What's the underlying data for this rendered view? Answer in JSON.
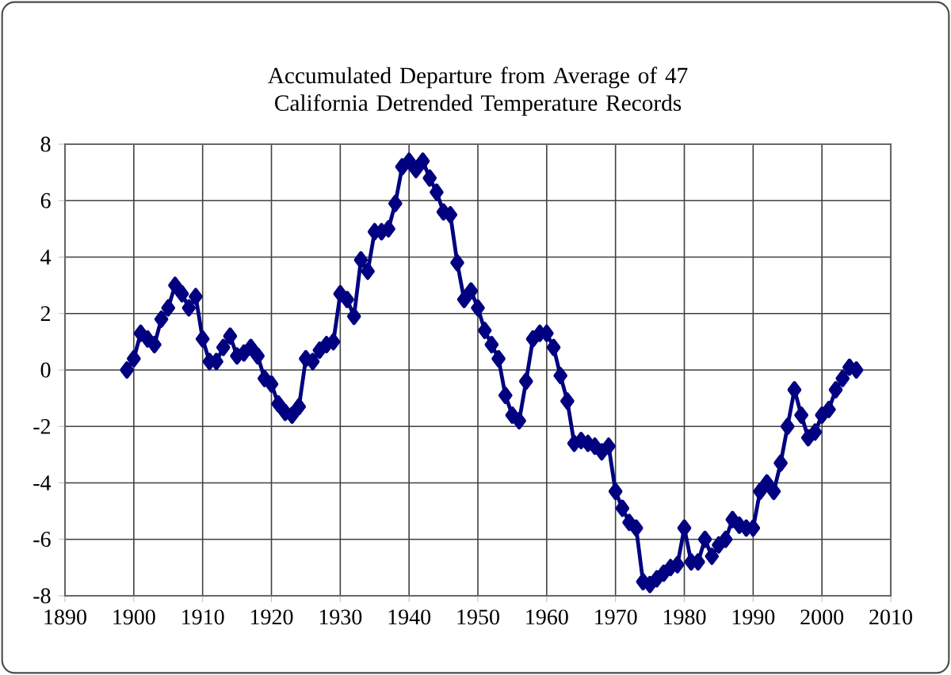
{
  "chart_data": {
    "type": "line",
    "title": "Accumulated Departure from Average of 47 California Detrended Temperature Records",
    "x": [
      1899,
      1900,
      1901,
      1902,
      1903,
      1904,
      1905,
      1906,
      1907,
      1908,
      1909,
      1910,
      1911,
      1912,
      1913,
      1914,
      1915,
      1916,
      1917,
      1918,
      1919,
      1920,
      1921,
      1922,
      1923,
      1924,
      1925,
      1926,
      1927,
      1928,
      1929,
      1930,
      1931,
      1932,
      1933,
      1934,
      1935,
      1936,
      1937,
      1938,
      1939,
      1940,
      1941,
      1942,
      1943,
      1944,
      1945,
      1946,
      1947,
      1948,
      1949,
      1950,
      1951,
      1952,
      1953,
      1954,
      1955,
      1956,
      1957,
      1958,
      1959,
      1960,
      1961,
      1962,
      1963,
      1964,
      1965,
      1966,
      1967,
      1968,
      1969,
      1970,
      1971,
      1972,
      1973,
      1974,
      1975,
      1976,
      1977,
      1978,
      1979,
      1980,
      1981,
      1982,
      1983,
      1984,
      1985,
      1986,
      1987,
      1988,
      1989,
      1990,
      1991,
      1992,
      1993,
      1994,
      1995,
      1996,
      1997,
      1998,
      1999,
      2000,
      2001,
      2002,
      2003,
      2004,
      2005
    ],
    "series": [
      {
        "color": "#000080",
        "values": [
          0.0,
          0.4,
          1.3,
          1.1,
          0.9,
          1.8,
          2.2,
          3.0,
          2.7,
          2.2,
          2.6,
          1.1,
          0.3,
          0.3,
          0.8,
          1.2,
          0.5,
          0.6,
          0.8,
          0.5,
          -0.3,
          -0.5,
          -1.2,
          -1.5,
          -1.6,
          -1.3,
          0.4,
          0.3,
          0.7,
          0.9,
          1.0,
          2.7,
          2.5,
          1.9,
          3.9,
          3.5,
          4.9,
          4.9,
          5.0,
          5.9,
          7.2,
          7.4,
          7.1,
          7.4,
          6.8,
          6.3,
          5.6,
          5.5,
          3.8,
          2.5,
          2.8,
          2.2,
          1.4,
          0.9,
          0.4,
          -0.9,
          -1.6,
          -1.8,
          -0.4,
          1.1,
          1.3,
          1.3,
          0.8,
          -0.2,
          -1.1,
          -2.6,
          -2.5,
          -2.6,
          -2.7,
          -2.9,
          -2.7,
          -4.3,
          -4.9,
          -5.4,
          -5.6,
          -7.5,
          -7.6,
          -7.4,
          -7.2,
          -7.0,
          -6.9,
          -5.6,
          -6.8,
          -6.8,
          -6.0,
          -6.6,
          -6.2,
          -6.0,
          -5.3,
          -5.5,
          -5.6,
          -5.6,
          -4.3,
          -4.0,
          -4.3,
          -3.3,
          -2.0,
          -0.7,
          -1.6,
          -2.4,
          -2.2,
          -1.6,
          -1.4,
          -0.7,
          -0.3,
          0.1,
          0.0
        ]
      }
    ],
    "xlim": [
      1890,
      2010
    ],
    "xticks": [
      1890,
      1900,
      1910,
      1920,
      1930,
      1940,
      1950,
      1960,
      1970,
      1980,
      1990,
      2000,
      2010
    ],
    "ylim": [
      -8,
      8
    ],
    "yticks": [
      -8,
      -6,
      -4,
      -2,
      0,
      2,
      4,
      6,
      8
    ],
    "grid": true,
    "marker": "diamond",
    "line_style": "solid"
  }
}
